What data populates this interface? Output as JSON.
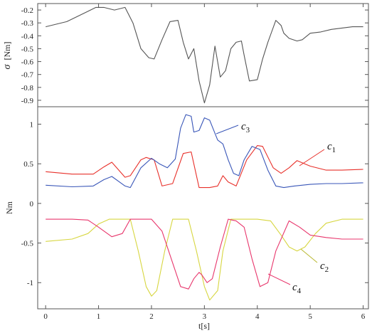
{
  "chart_data": [
    {
      "type": "line",
      "ylabel_symbol": "σ",
      "ylabel_unit": "[Nm]",
      "ylim": [
        -0.95,
        -0.15
      ],
      "xlim": [
        -0.15,
        6.1
      ],
      "yticks": [
        "-0.2",
        "-0.3",
        "-0.4",
        "-0.5",
        "-0.6",
        "-0.7",
        "-0.8",
        "-0.9"
      ],
      "ytick_values": [
        -0.2,
        -0.3,
        -0.4,
        -0.5,
        -0.6,
        -0.7,
        -0.8,
        -0.9
      ],
      "grid": false,
      "series": [
        {
          "color": "#555555",
          "x": [
            0,
            0.2,
            0.4,
            0.6,
            0.8,
            0.95,
            1.1,
            1.3,
            1.5,
            1.65,
            1.8,
            1.95,
            2.05,
            2.2,
            2.35,
            2.5,
            2.6,
            2.7,
            2.8,
            2.9,
            3.0,
            3.1,
            3.2,
            3.3,
            3.4,
            3.5,
            3.6,
            3.7,
            3.75,
            3.85,
            4.0,
            4.1,
            4.2,
            4.35,
            4.45,
            4.5,
            4.6,
            4.75,
            4.85,
            5.0,
            5.2,
            5.4,
            5.6,
            5.8,
            6.0
          ],
          "y": [
            -0.33,
            -0.31,
            -0.29,
            -0.25,
            -0.21,
            -0.18,
            -0.18,
            -0.2,
            -0.18,
            -0.3,
            -0.5,
            -0.57,
            -0.58,
            -0.43,
            -0.29,
            -0.28,
            -0.45,
            -0.58,
            -0.5,
            -0.75,
            -0.92,
            -0.78,
            -0.48,
            -0.72,
            -0.67,
            -0.5,
            -0.45,
            -0.44,
            -0.55,
            -0.75,
            -0.74,
            -0.58,
            -0.45,
            -0.28,
            -0.32,
            -0.38,
            -0.42,
            -0.44,
            -0.43,
            -0.38,
            -0.37,
            -0.35,
            -0.34,
            -0.33,
            -0.33
          ]
        }
      ]
    },
    {
      "type": "line",
      "ylabel": "Nm",
      "xlabel": "t[s]",
      "ylim": [
        -1.33,
        1.22
      ],
      "xlim": [
        -0.15,
        6.1
      ],
      "yticks": [
        "1",
        "0.5",
        "0",
        "-0.5",
        "-1"
      ],
      "ytick_values": [
        1,
        0.5,
        0,
        -0.5,
        -1
      ],
      "xticks": [
        "0",
        "1",
        "2",
        "3",
        "4",
        "5",
        "6"
      ],
      "xtick_values": [
        0,
        1,
        2,
        3,
        4,
        5,
        6
      ],
      "grid": false,
      "series": [
        {
          "name_letter": "c",
          "name_sub": "1",
          "color": "#e8302a",
          "x": [
            0,
            0.5,
            0.9,
            1.1,
            1.25,
            1.5,
            1.6,
            1.8,
            1.9,
            2.05,
            2.2,
            2.4,
            2.6,
            2.75,
            2.9,
            3.1,
            3.25,
            3.35,
            3.45,
            3.6,
            3.8,
            4.0,
            4.1,
            4.3,
            4.45,
            4.6,
            4.75,
            5.0,
            5.3,
            5.6,
            6.0
          ],
          "y": [
            0.4,
            0.37,
            0.37,
            0.46,
            0.52,
            0.33,
            0.35,
            0.55,
            0.58,
            0.55,
            0.22,
            0.25,
            0.63,
            0.65,
            0.2,
            0.2,
            0.22,
            0.35,
            0.27,
            0.22,
            0.55,
            0.73,
            0.72,
            0.45,
            0.38,
            0.45,
            0.54,
            0.47,
            0.42,
            0.42,
            0.43
          ]
        },
        {
          "name_letter": "c",
          "name_sub": "2",
          "color": "#d7d640",
          "x": [
            0,
            0.5,
            0.8,
            1.0,
            1.2,
            1.4,
            1.6,
            1.75,
            1.9,
            2.0,
            2.1,
            2.25,
            2.4,
            2.55,
            2.7,
            2.85,
            3.0,
            3.1,
            3.25,
            3.35,
            3.5,
            3.7,
            4.0,
            4.25,
            4.45,
            4.6,
            4.75,
            4.9,
            5.1,
            5.3,
            5.6,
            6.0
          ],
          "y": [
            -0.48,
            -0.45,
            -0.38,
            -0.26,
            -0.2,
            -0.2,
            -0.2,
            -0.6,
            -1.05,
            -1.17,
            -1.1,
            -0.6,
            -0.2,
            -0.2,
            -0.2,
            -0.6,
            -1.05,
            -1.22,
            -1.1,
            -0.6,
            -0.2,
            -0.2,
            -0.2,
            -0.22,
            -0.4,
            -0.55,
            -0.6,
            -0.55,
            -0.38,
            -0.25,
            -0.2,
            -0.2
          ]
        },
        {
          "name_letter": "c",
          "name_sub": "3",
          "color": "#3956b8",
          "x": [
            0,
            0.5,
            0.9,
            1.1,
            1.25,
            1.5,
            1.6,
            1.8,
            2.0,
            2.15,
            2.3,
            2.45,
            2.55,
            2.65,
            2.75,
            2.8,
            2.9,
            3.0,
            3.1,
            3.25,
            3.35,
            3.45,
            3.55,
            3.65,
            3.75,
            3.9,
            4.05,
            4.2,
            4.35,
            4.5,
            4.7,
            5.0,
            5.3,
            5.6,
            6.0
          ],
          "y": [
            0.23,
            0.21,
            0.22,
            0.3,
            0.34,
            0.22,
            0.2,
            0.45,
            0.57,
            0.5,
            0.45,
            0.56,
            0.95,
            1.12,
            1.1,
            0.9,
            0.92,
            1.08,
            1.05,
            0.8,
            0.75,
            0.55,
            0.38,
            0.35,
            0.55,
            0.72,
            0.68,
            0.42,
            0.22,
            0.2,
            0.22,
            0.24,
            0.25,
            0.25,
            0.26
          ]
        },
        {
          "name_letter": "c",
          "name_sub": "4",
          "color": "#e8366c",
          "x": [
            0,
            0.5,
            0.8,
            1.0,
            1.25,
            1.45,
            1.6,
            1.8,
            2.0,
            2.2,
            2.4,
            2.55,
            2.7,
            2.8,
            2.9,
            2.95,
            3.05,
            3.15,
            3.3,
            3.45,
            3.6,
            3.75,
            3.9,
            4.05,
            4.2,
            4.35,
            4.6,
            4.8,
            5.0,
            5.3,
            5.6,
            6.0
          ],
          "y": [
            -0.2,
            -0.2,
            -0.21,
            -0.3,
            -0.42,
            -0.38,
            -0.2,
            -0.2,
            -0.2,
            -0.35,
            -0.75,
            -1.05,
            -1.08,
            -0.95,
            -0.87,
            -0.9,
            -1.0,
            -0.95,
            -0.55,
            -0.2,
            -0.22,
            -0.3,
            -0.7,
            -1.05,
            -1.0,
            -0.6,
            -0.22,
            -0.3,
            -0.4,
            -0.43,
            -0.45,
            -0.45
          ]
        }
      ]
    }
  ]
}
